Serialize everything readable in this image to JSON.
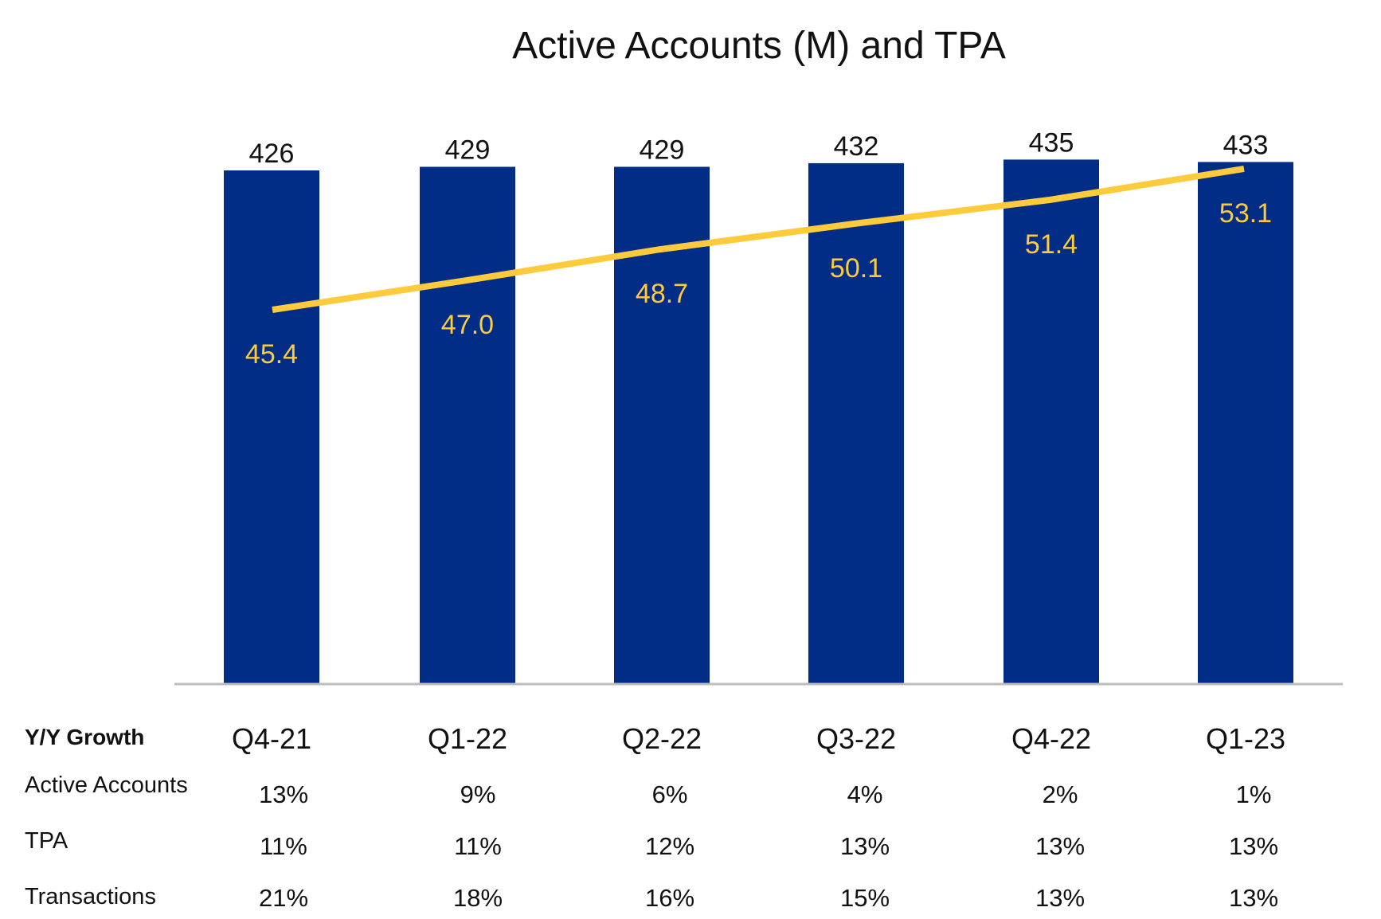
{
  "chart_data": {
    "type": "bar",
    "title": "Active Accounts (M) and TPA",
    "categories": [
      "Q4-21",
      "Q1-22",
      "Q2-22",
      "Q3-22",
      "Q4-22",
      "Q1-23"
    ],
    "series": [
      {
        "name": "Active Accounts (M)",
        "type": "bar",
        "values": [
          426,
          429,
          429,
          432,
          435,
          433
        ],
        "color": "#012D87"
      },
      {
        "name": "TPA",
        "type": "line",
        "values": [
          45.4,
          47.0,
          48.7,
          50.1,
          51.4,
          53.1
        ],
        "color": "#FDCB3B"
      }
    ],
    "value_labels": {
      "bars": [
        "426",
        "429",
        "429",
        "432",
        "435",
        "433"
      ],
      "line": [
        "45.4",
        "47.0",
        "48.7",
        "50.1",
        "51.4",
        "53.1"
      ]
    },
    "ylim": [
      0,
      435
    ],
    "grid": false,
    "legend": "none"
  },
  "table": {
    "heading": "Y/Y Growth",
    "rows": [
      {
        "label": "Active Accounts",
        "values": [
          "13%",
          "9%",
          "6%",
          "4%",
          "2%",
          "1%"
        ]
      },
      {
        "label": "TPA",
        "values": [
          "11%",
          "11%",
          "12%",
          "13%",
          "13%",
          "13%"
        ]
      },
      {
        "label": "Transactions",
        "values": [
          "21%",
          "18%",
          "16%",
          "15%",
          "13%",
          "13%"
        ]
      }
    ]
  }
}
